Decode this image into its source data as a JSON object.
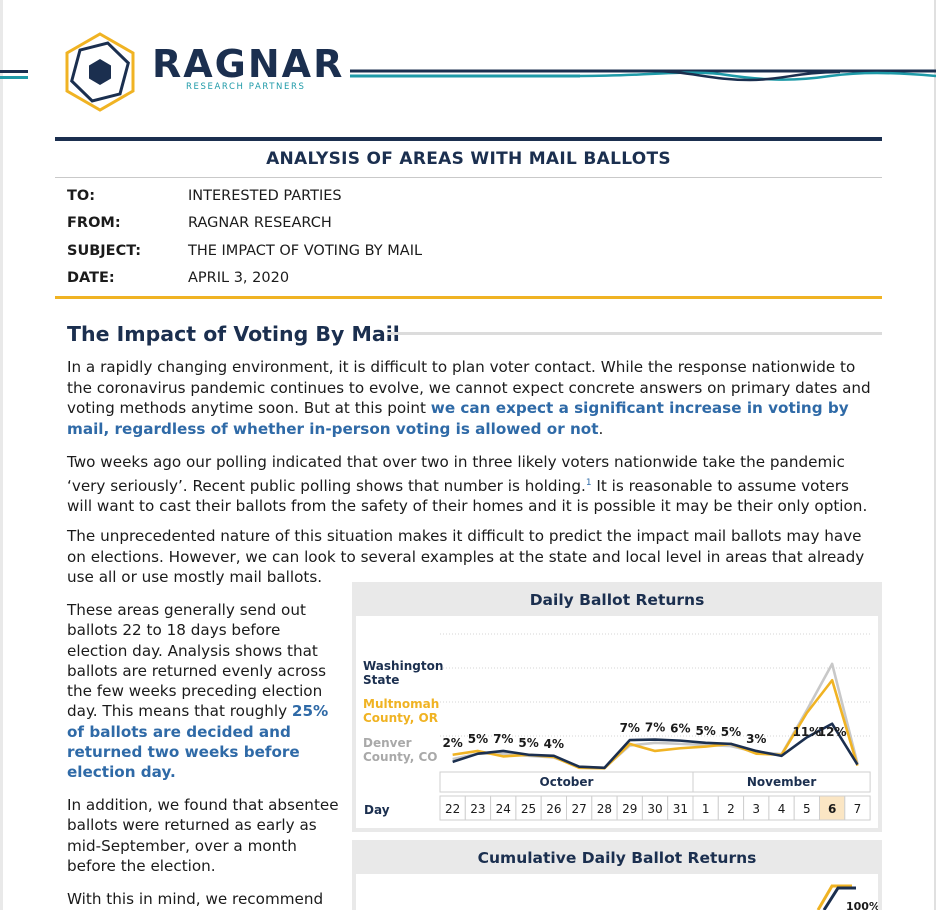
{
  "brand": {
    "name": "RAGNAR",
    "subtitle": "RESEARCH PARTNERS",
    "colors": {
      "navy": "#1b2f4f",
      "gold": "#f0b323",
      "teal": "#1e9aa8",
      "blue": "#2f6aa7",
      "gray": "#c8c8c8"
    }
  },
  "memo": {
    "title": "ANALYSIS OF AREAS WITH MAIL BALLOTS",
    "rows": [
      {
        "key": "TO:",
        "value": "INTERESTED PARTIES"
      },
      {
        "key": "FROM:",
        "value": "RAGNAR RESEARCH"
      },
      {
        "key": "SUBJECT:",
        "value": "THE IMPACT OF VOTING BY MAIL"
      },
      {
        "key": "DATE:",
        "value": "APRIL 3, 2020"
      }
    ]
  },
  "section": {
    "heading": "The Impact of Voting By Mail",
    "p1_a": "In a rapidly changing environment, it is difficult to plan voter contact. While the response nationwide to the coronavirus pandemic continues to evolve, we cannot expect concrete answers on primary dates and voting methods anytime soon. But at this point ",
    "p1_hl": "we can expect a significant increase in voting by mail, regardless of whether in-person voting is allowed or not",
    "p1_end": ".",
    "p2_a": "Two weeks ago our polling indicated that over two in three likely voters nationwide take the pandemic ‘very seriously’. Recent public polling shows that number is holding.",
    "p2_sup": "1",
    "p2_b": " It is reasonable to assume voters will want to cast their ballots from the safety of their homes and it is possible it may be their only option.",
    "p3": "The unprecedented nature of this situation makes it difficult to predict the impact mail ballots may have on elections. However, we can look to several examples at the state and local level in areas that already use all or use mostly mail ballots.",
    "c1_a": "These areas generally send out ballots 22 to 18 days before election day. Analysis shows that ballots are returned evenly across the few weeks preceding election day. This means that roughly ",
    "c1_hl": "25% of ballots are decided and returned two weeks before election day.",
    "c2": "In addition, we found that absentee ballots were returned as early as mid-September, over a month before the election.",
    "c3": "With this in mind, we recommend"
  },
  "chart_data": [
    {
      "type": "line",
      "title": "Daily Ballot Returns",
      "x": [
        "22",
        "23",
        "24",
        "25",
        "26",
        "27",
        "28",
        "29",
        "30",
        "31",
        "1",
        "2",
        "3",
        "4",
        "5",
        "6",
        "7"
      ],
      "x_groups": [
        {
          "label": "October",
          "span": 10
        },
        {
          "label": "November",
          "span": 7
        }
      ],
      "x_axis_label": "Day",
      "highlight_x": "6",
      "series": [
        {
          "name": "Washington State",
          "color": "#1b2f4f",
          "values": [
            1.5,
            3.0,
            3.5,
            2.8,
            2.6,
            0.6,
            0.4,
            5.5,
            5.6,
            5.4,
            5.0,
            4.8,
            3.5,
            2.6,
            6.0,
            8.5,
            1.0
          ]
        },
        {
          "name": "Multnomah County, OR",
          "color": "#f0b323",
          "values": [
            2.8,
            3.5,
            2.5,
            2.8,
            2.4,
            0.4,
            0.3,
            4.8,
            3.5,
            4.0,
            4.3,
            4.8,
            3.0,
            2.8,
            10.5,
            16.5,
            0.8
          ]
        },
        {
          "name": "Denver County, CO",
          "color": "#c8c8c8",
          "values": [
            2.0,
            3.0,
            3.0,
            2.6,
            2.3,
            0.6,
            0.4,
            4.5,
            5.0,
            4.8,
            4.6,
            4.4,
            3.3,
            2.9,
            11.0,
            19.5,
            1.2
          ]
        }
      ],
      "data_labels": [
        {
          "x": "22",
          "text": "2%"
        },
        {
          "x": "23",
          "text": "5%"
        },
        {
          "x": "24",
          "text": "7%"
        },
        {
          "x": "25",
          "text": "5%"
        },
        {
          "x": "26",
          "text": "4%"
        },
        {
          "x": "29",
          "text": "7%"
        },
        {
          "x": "30",
          "text": "7%"
        },
        {
          "x": "31",
          "text": "6%"
        },
        {
          "x": "1",
          "text": "5%"
        },
        {
          "x": "2",
          "text": "5%"
        },
        {
          "x": "3",
          "text": "3%"
        },
        {
          "x": "5",
          "text": "11%"
        },
        {
          "x": "6",
          "text": "12%"
        }
      ],
      "ylim": [
        0,
        25
      ],
      "grid": true,
      "legend": "left"
    },
    {
      "type": "line",
      "title": "Cumulative Daily Ballot Returns",
      "visible_label": "100%"
    }
  ]
}
